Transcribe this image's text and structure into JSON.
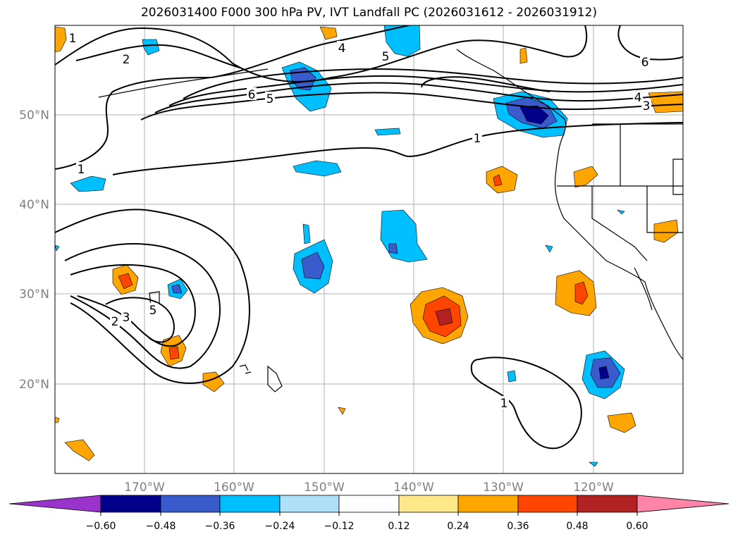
{
  "title": "2026031400 F000 300 hPa PV, IVT Landfall PC (2026031612 - 2026031912)",
  "axes": {
    "lat_labels": [
      "20°N",
      "30°N",
      "40°N",
      "50°N"
    ],
    "lon_labels": [
      "170°W",
      "160°W",
      "150°W",
      "140°W",
      "130°W",
      "120°W"
    ],
    "label_color": "#808080",
    "grid_color": "#b0b0b0"
  },
  "colorbar": {
    "ticks": [
      "−0.60",
      "−0.48",
      "−0.36",
      "−0.24",
      "−0.12",
      "0.12",
      "0.24",
      "0.36",
      "0.48",
      "0.60"
    ],
    "colors": [
      "#9933cc",
      "#00008b",
      "#3a5bcc",
      "#00bfff",
      "#aee0fa",
      "#ffffff",
      "#ffe88a",
      "#ffa500",
      "#ff4500",
      "#b22222",
      "#ff85a8"
    ]
  },
  "contour_labels": [
    "1",
    "2",
    "4",
    "5",
    "6",
    "5",
    "6",
    "4",
    "3",
    "1",
    "1",
    "2",
    "3",
    "5",
    "1"
  ],
  "map_colors": {
    "land_line": "#000000",
    "contour_line": "#000000"
  }
}
